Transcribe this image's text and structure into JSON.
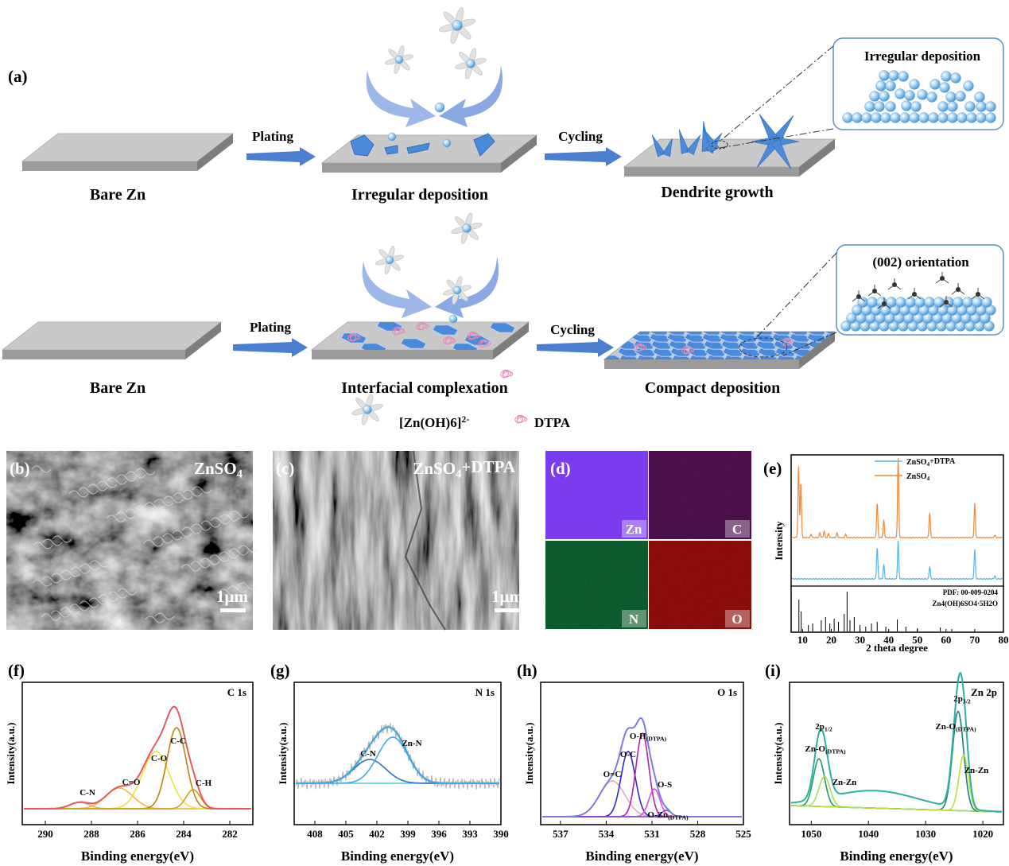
{
  "panel_a": {
    "label": "(a)",
    "row1": {
      "substrate": "Bare Zn",
      "step1": "Plating",
      "result1": "Irregular deposition",
      "step2": "Cycling",
      "result2": "Dendrite growth",
      "inset": "Irregular deposition"
    },
    "row2": {
      "substrate": "Bare Zn",
      "step1": "Plating",
      "result1": "Interfacial complexation",
      "step2": "Cycling",
      "result2": "Compact deposition",
      "inset": "(002) orientation"
    },
    "legend": {
      "ion": {
        "text": "[Zn(OH)6]",
        "sup": "2-"
      },
      "additive": "DTPA"
    }
  },
  "panel_b": {
    "label": "(b)",
    "electrolyte": {
      "text": "ZnSO",
      "sub": "4"
    },
    "scale_bar": "1μm"
  },
  "panel_c": {
    "label": "(c)",
    "electrolyte": {
      "text": "ZnSO",
      "sub": "4",
      "tail": "+DTPA"
    },
    "scale_bar": "1μm"
  },
  "panel_d": {
    "label": "(d)",
    "maps": [
      "Zn",
      "C",
      "N",
      "O"
    ],
    "colors": [
      "#7b3cf0",
      "#4a0e4a",
      "#0d5a2c",
      "#8c0c0c"
    ]
  },
  "panel_e": {
    "label": "(e)",
    "legend": [
      {
        "text": "ZnSO",
        "sub": "4",
        "tail": "+DTPA"
      },
      {
        "text": "ZnSO",
        "sub": "4"
      }
    ],
    "colors": [
      "#5ab4e6",
      "#f08a3c"
    ],
    "y_label": "Intensity",
    "x_label": "2 theta degree",
    "xlim": [
      6,
      80
    ],
    "xticks": [
      10,
      20,
      30,
      40,
      50,
      60,
      70,
      80
    ],
    "reference": "PDF: 00-009-0204",
    "reference_phase": "Zn4(OH)6SO4·5H2O"
  },
  "xps": [
    {
      "label": "(f)",
      "title": "C 1s",
      "x_label": "Binding energy(eV)",
      "y_label": "Intensity(a.u.)",
      "xlim": [
        291,
        281
      ],
      "xticks": [
        290,
        288,
        286,
        284,
        282
      ],
      "peaks": [
        "C-N",
        "C=O",
        "C-O",
        "C-C",
        "C-H"
      ]
    },
    {
      "label": "(g)",
      "title": "N 1s",
      "x_label": "Binding energy(eV)",
      "y_label": "Intensity(a.u.)",
      "xlim": [
        410,
        390
      ],
      "xticks": [
        408,
        405,
        402,
        399,
        396,
        393,
        390
      ],
      "peaks": [
        "C-N",
        "Zn-N"
      ]
    },
    {
      "label": "(h)",
      "title": "O 1s",
      "x_label": "Binding energy(eV)",
      "y_label": "Intensity(a.u.)",
      "xlim": [
        538.3,
        525
      ],
      "xticks": [
        537,
        534,
        531,
        528,
        525
      ],
      "peaks": [
        "O=C",
        "O-C",
        {
          "text": "O-H",
          "sub": "(DTPA)"
        },
        "O-S",
        {
          "text": "O-Zn",
          "sub": "(DTPA)"
        }
      ]
    },
    {
      "label": "(i)",
      "title": "Zn 2p",
      "x_label": "Binding energy(eV)",
      "y_label": "Intensity(a.u.)",
      "xlim": [
        1053.8,
        1016.4
      ],
      "xticks": [
        1050,
        1040,
        1030,
        1020
      ],
      "peaks": [
        {
          "text": "2p",
          "sub": "1/2"
        },
        {
          "text": "Zn-O",
          "sub": "(DTPA)"
        },
        "Zn-Zn",
        {
          "text": "2p",
          "sub": "3/2"
        },
        {
          "text": "Zn-O",
          "sub": "(DTPA)"
        },
        "Zn-Zn"
      ]
    }
  ]
}
